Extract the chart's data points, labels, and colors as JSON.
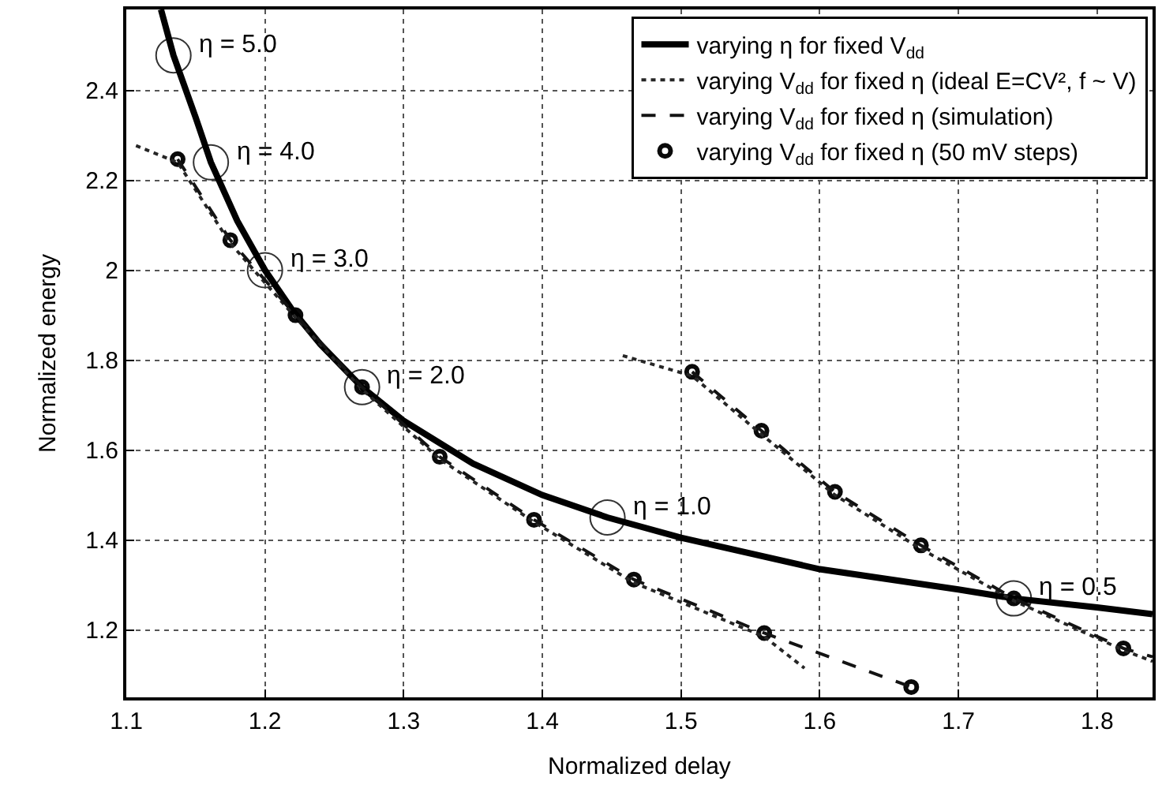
{
  "chart_data": {
    "type": "line",
    "xlabel": "Normalized delay",
    "ylabel": "Normalized energy",
    "xlim": [
      1.1,
      1.84
    ],
    "ylim": [
      1.05,
      2.58
    ],
    "xticks": [
      1.1,
      1.2,
      1.3,
      1.4,
      1.5,
      1.6,
      1.7,
      1.8
    ],
    "yticks": [
      1.2,
      1.4,
      1.6,
      1.8,
      2,
      2.2,
      2.4
    ],
    "grid": true,
    "legend": "top right",
    "series": [
      {
        "name": "varying η for fixed V$_{dd}$",
        "color": "#000000",
        "line_style": "solid",
        "marker": "none",
        "x": [
          1.125,
          1.134,
          1.15,
          1.161,
          1.18,
          1.2,
          1.22,
          1.24,
          1.27,
          1.3,
          1.35,
          1.4,
          1.447,
          1.5,
          1.6,
          1.7,
          1.74,
          1.8,
          1.84
        ],
        "values": [
          2.58,
          2.478,
          2.34,
          2.24,
          2.11,
          2.0,
          1.91,
          1.835,
          1.74,
          1.665,
          1.57,
          1.5,
          1.45,
          1.405,
          1.335,
          1.29,
          1.27,
          1.25,
          1.235
        ]
      },
      {
        "name": "varying V$_{dd}$ for fixed η (ideal E=CV², f ~ V)",
        "color": "#262626",
        "line_style": "dotted",
        "marker": "none",
        "x": [
          1.107,
          1.137,
          1.175,
          1.222,
          1.27,
          1.326,
          1.394,
          1.466,
          1.56,
          1.589,
          null,
          1.458,
          1.508,
          1.558,
          1.611,
          1.673,
          1.74,
          1.819,
          1.84
        ],
        "values": [
          2.277,
          2.24,
          2.06,
          1.895,
          1.735,
          1.58,
          1.44,
          1.305,
          1.185,
          1.115,
          null,
          1.81,
          1.765,
          1.635,
          1.5,
          1.38,
          1.265,
          1.155,
          1.13
        ]
      },
      {
        "name": "varying V$_{dd}$ for fixed η (simulation)",
        "color": "#131313",
        "line_style": "dashed",
        "marker": "none",
        "x": [
          1.137,
          1.175,
          1.222,
          1.27,
          1.326,
          1.394,
          1.466,
          1.56,
          1.666,
          null,
          1.508,
          1.558,
          1.611,
          1.673,
          1.74,
          1.819,
          1.84
        ],
        "values": [
          2.247,
          2.067,
          1.9,
          1.74,
          1.585,
          1.445,
          1.312,
          1.193,
          1.073,
          null,
          1.774,
          1.643,
          1.507,
          1.388,
          1.27,
          1.159,
          1.14
        ]
      },
      {
        "name": "varying V$_{dd}$ for fixed η (50 mV steps)",
        "color": "#0a0a0a",
        "type": "scatter",
        "marker": "circle",
        "x": [
          1.137,
          1.175,
          1.222,
          1.27,
          1.326,
          1.394,
          1.466,
          1.56,
          1.666,
          1.508,
          1.558,
          1.611,
          1.673,
          1.74,
          1.819
        ],
        "values": [
          2.247,
          2.067,
          1.9,
          1.74,
          1.585,
          1.445,
          1.312,
          1.193,
          1.073,
          1.774,
          1.643,
          1.507,
          1.388,
          1.27,
          1.159
        ]
      },
      {
        "color": "#333333",
        "type": "scatter",
        "marker": "circle",
        "x": [
          1.134,
          1.161,
          1.2,
          1.27,
          1.447,
          1.74
        ],
        "values": [
          2.478,
          2.24,
          2.0,
          1.74,
          1.45,
          1.27
        ]
      }
    ],
    "annotations": [
      {
        "text": "η = 5.0",
        "x": 1.134,
        "y": 2.478
      },
      {
        "text": "η = 4.0",
        "x": 1.161,
        "y": 2.24
      },
      {
        "text": "η = 3.0",
        "x": 1.2,
        "y": 2.0
      },
      {
        "text": "η = 2.0",
        "x": 1.27,
        "y": 1.74
      },
      {
        "text": "η = 1.0",
        "x": 1.447,
        "y": 1.45
      },
      {
        "text": "η = 0.5",
        "x": 1.74,
        "y": 1.27
      }
    ]
  }
}
